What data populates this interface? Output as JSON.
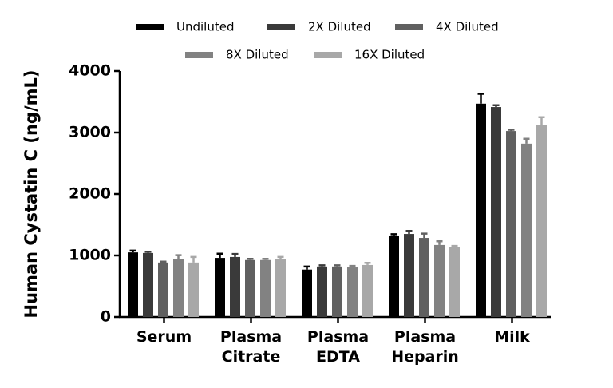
{
  "chart_data": {
    "type": "bar",
    "y_label": "Human Cystatin C (ng/mL)",
    "categories": [
      "Serum",
      "Plasma Citrate",
      "Plasma EDTA",
      "Plasma Heparin",
      "Milk"
    ],
    "series": [
      {
        "name": "Undiluted",
        "color": "#000000",
        "values": [
          1050,
          960,
          770,
          1325,
          3470
        ],
        "errors": [
          30,
          70,
          50,
          20,
          160
        ]
      },
      {
        "name": "2X Diluted",
        "color": "#3a3a3a",
        "values": [
          1040,
          975,
          820,
          1350,
          3415
        ],
        "errors": [
          20,
          50,
          20,
          50,
          30
        ]
      },
      {
        "name": "4X Diluted",
        "color": "#606060",
        "values": [
          885,
          925,
          820,
          1285,
          3025
        ],
        "errors": [
          15,
          20,
          20,
          70,
          20
        ]
      },
      {
        "name": "8X Diluted",
        "color": "#828282",
        "values": [
          935,
          925,
          805,
          1170,
          2820
        ],
        "errors": [
          70,
          20,
          25,
          60,
          80
        ]
      },
      {
        "name": "16X Diluted",
        "color": "#a8a8a8",
        "values": [
          885,
          935,
          845,
          1130,
          3120
        ],
        "errors": [
          90,
          40,
          35,
          25,
          130
        ]
      }
    ],
    "ylim": [
      0,
      4000
    ],
    "yticks": [
      0,
      1000,
      2000,
      3000,
      4000
    ],
    "grid": false
  }
}
